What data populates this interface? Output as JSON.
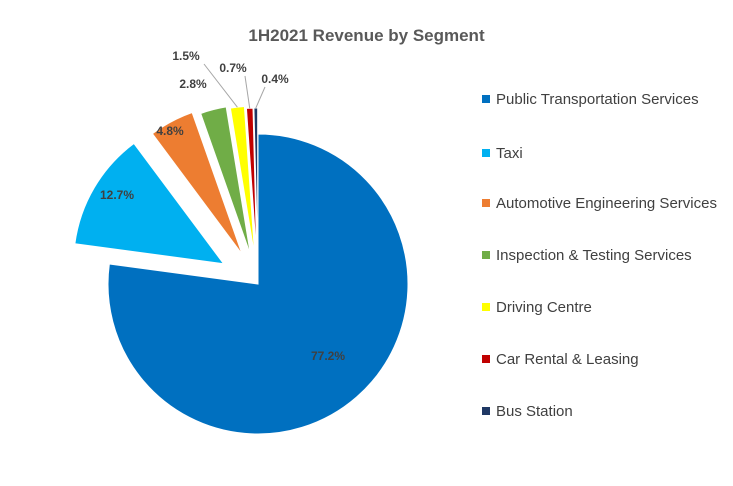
{
  "chart_data": {
    "type": "pie",
    "title": "1H2021 Revenue by Segment",
    "slices": [
      {
        "label": "Public Transportation Services",
        "value": 77.2,
        "value_label": "77.2%",
        "color": "#0070C0"
      },
      {
        "label": "Taxi",
        "value": 12.7,
        "value_label": "12.7%",
        "color": "#00B0F0"
      },
      {
        "label": "Automotive Engineering Services",
        "value": 4.8,
        "value_label": "4.8%",
        "color": "#ED7D31"
      },
      {
        "label": "Inspection & Testing Services",
        "value": 2.8,
        "value_label": "2.8%",
        "color": "#70AD47"
      },
      {
        "label": "Driving Centre",
        "value": 1.5,
        "value_label": "1.5%",
        "color": "#FFFF00"
      },
      {
        "label": "Car Rental & Leasing",
        "value": 0.7,
        "value_label": "0.7%",
        "color": "#C00000"
      },
      {
        "label": "Bus Station",
        "value": 0.4,
        "value_label": "0.4%",
        "color": "#1F3864"
      }
    ],
    "legend_position": "right"
  }
}
